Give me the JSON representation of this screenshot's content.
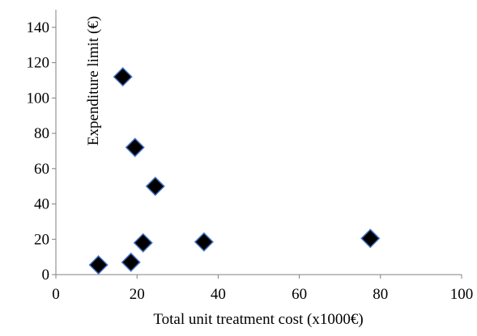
{
  "chart_data": {
    "type": "scatter",
    "title": "",
    "xlabel": "Total unit treatment cost (x1000€)",
    "ylabel": "Expenditure limit (€)",
    "xlim": [
      0,
      100
    ],
    "ylim": [
      0,
      150
    ],
    "x_ticks": [
      0,
      20,
      40,
      60,
      80,
      100
    ],
    "y_ticks": [
      0,
      20,
      40,
      60,
      80,
      100,
      120,
      140
    ],
    "x_tick_labels": [
      "0",
      "20",
      "40",
      "60",
      "80",
      "100"
    ],
    "y_tick_labels": [
      "0",
      "20",
      "40",
      "60",
      "80",
      "100",
      "120",
      "140"
    ],
    "grid": false,
    "legend": "none",
    "marker": "diamond",
    "marker_fill": "#000000",
    "marker_edge": "#4472C4",
    "points": [
      {
        "x": 10.5,
        "y": 5.5
      },
      {
        "x": 16.5,
        "y": 112
      },
      {
        "x": 18.5,
        "y": 7
      },
      {
        "x": 19.5,
        "y": 72
      },
      {
        "x": 21.5,
        "y": 18
      },
      {
        "x": 24.5,
        "y": 50
      },
      {
        "x": 36.5,
        "y": 18.5
      },
      {
        "x": 77.5,
        "y": 20.5
      }
    ]
  }
}
